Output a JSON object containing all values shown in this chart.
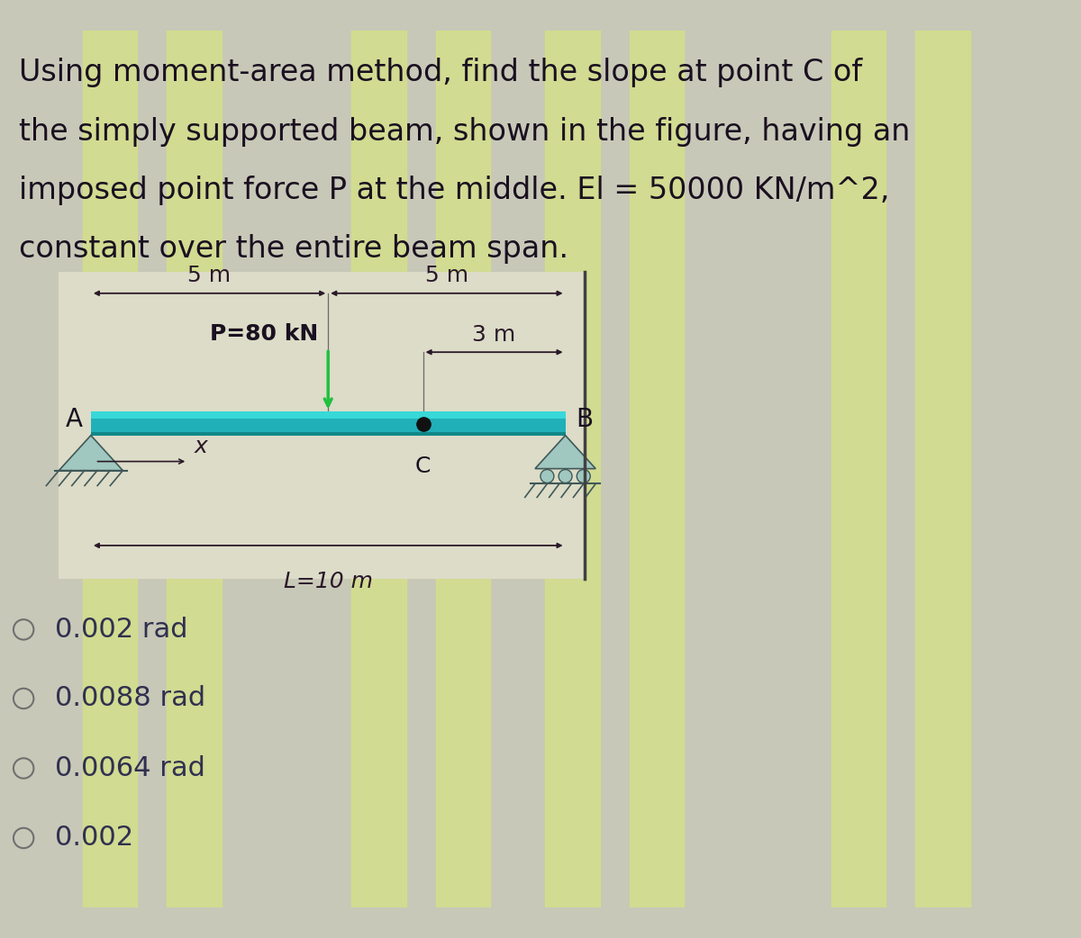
{
  "title_lines": [
    "Using moment-area method, find the slope at point C of",
    "the simply supported beam, shown in the figure, having an",
    "imposed point force P at the middle. El = 50000 KN/m^2,",
    "constant over the entire beam span."
  ],
  "background_color": "#c8c8b8",
  "stripe_color": "#d8e878",
  "stripe_alpha": 0.6,
  "text_color": "#1a1020",
  "title_fontsize": 24,
  "beam_color": "#20b0b8",
  "beam_top_color": "#10d0d8",
  "beam_dark_color": "#108888",
  "options": [
    "0.002 rad",
    "0.0088 rad",
    "0.0064 rad",
    "0.002 rad"
  ],
  "options_fontsize": 22,
  "diagram_bg": "#dcdcc8",
  "label_fontsize": 18,
  "dim_color": "#2a1828",
  "force_color": "#20c040"
}
